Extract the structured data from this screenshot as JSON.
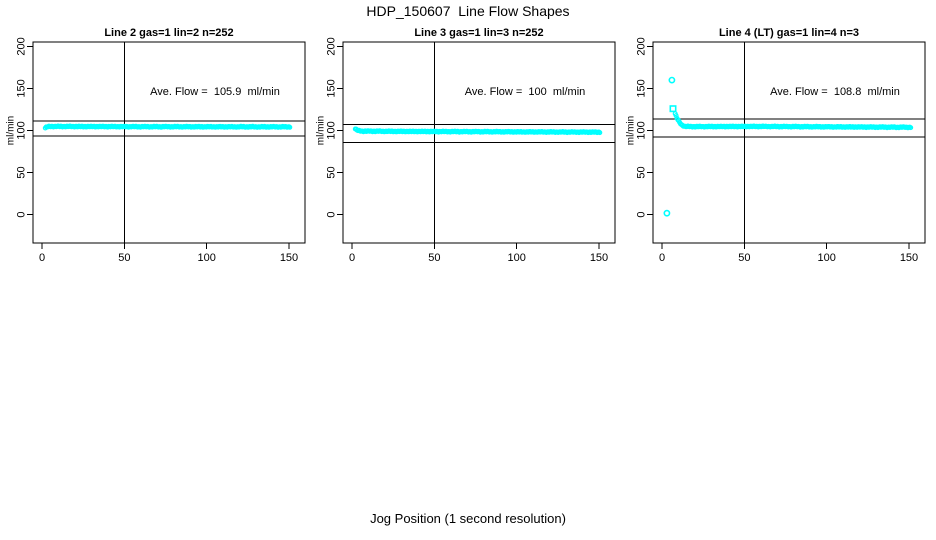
{
  "window_title": "HDP_150607  Line Flow Shapes",
  "xlabel": "Jog Position (1 second resolution)",
  "colors": {
    "points": "#00ffff",
    "axis": "#000000",
    "background": "#ffffff"
  },
  "chart_data": [
    {
      "type": "scatter",
      "title": "Line 2 gas=1 lin=2 n=252",
      "annotation": "Ave. Flow =  105.9  ml/min",
      "ave_flow": 105.9,
      "n": 252,
      "ylabel": "ml/min",
      "xticks": [
        "0",
        "50",
        "100",
        "150"
      ],
      "xtick_values": [
        0,
        50,
        100,
        150
      ],
      "yticks": [
        "0",
        "50",
        "100",
        "150",
        "200"
      ],
      "ytick_values": [
        0,
        50,
        100,
        150,
        200
      ],
      "xlim": [
        -5.5,
        159.5
      ],
      "ylim": [
        -34,
        205
      ],
      "grid": false,
      "vline_x": 50,
      "hlines": [
        111.3,
        93.5
      ],
      "band": {
        "marker": "circle",
        "keypoints": [
          [
            2,
            103.0
          ],
          [
            3,
            104.3
          ],
          [
            5,
            104.8
          ],
          [
            60,
            104.5
          ],
          [
            151,
            104.3
          ]
        ],
        "x_step": 0.55,
        "jitter": 0.55
      },
      "outliers": []
    },
    {
      "type": "scatter",
      "title": "Line 3 gas=1 lin=3 n=252",
      "annotation": "Ave. Flow =  100  ml/min",
      "ave_flow": 100,
      "n": 252,
      "ylabel": "ml/min",
      "xticks": [
        "0",
        "50",
        "100",
        "150"
      ],
      "xtick_values": [
        0,
        50,
        100,
        150
      ],
      "yticks": [
        "0",
        "50",
        "100",
        "150",
        "200"
      ],
      "ytick_values": [
        0,
        50,
        100,
        150,
        200
      ],
      "xlim": [
        -5.5,
        159.5
      ],
      "ylim": [
        -34,
        205
      ],
      "grid": false,
      "vline_x": 50,
      "hlines": [
        107.0,
        86.0
      ],
      "band": {
        "marker": "circle",
        "keypoints": [
          [
            2,
            101.8
          ],
          [
            3.5,
            100.0
          ],
          [
            6,
            99.2
          ],
          [
            30,
            98.9
          ],
          [
            151,
            98.0
          ]
        ],
        "x_step": 0.55,
        "jitter": 0.55
      },
      "outliers": []
    },
    {
      "type": "scatter",
      "title": "Line 4 (LT) gas=1 lin=4 n=3",
      "annotation": "Ave. Flow =  108.8  ml/min",
      "ave_flow": 108.8,
      "n": 3,
      "ylabel": "ml/min",
      "xticks": [
        "0",
        "50",
        "100",
        "150"
      ],
      "xtick_values": [
        0,
        50,
        100,
        150
      ],
      "yticks": [
        "0",
        "50",
        "100",
        "150",
        "200"
      ],
      "ytick_values": [
        0,
        50,
        100,
        150,
        200
      ],
      "xlim": [
        -5.5,
        159.5
      ],
      "ylim": [
        -34,
        205
      ],
      "grid": false,
      "vline_x": 50,
      "hlines": [
        113.5,
        92.5
      ],
      "band": {
        "marker": "circle",
        "keypoints": [
          [
            8,
            120.0
          ],
          [
            9,
            115.0
          ],
          [
            10.5,
            110.0
          ],
          [
            12,
            106.5
          ],
          [
            14,
            104.8
          ],
          [
            20,
            104.6
          ],
          [
            60,
            104.8
          ],
          [
            151,
            103.8
          ]
        ],
        "x_step": 0.55,
        "jitter": 0.55
      },
      "outliers": [
        {
          "x": 3,
          "y": 1.5,
          "marker": "circle"
        },
        {
          "x": 6,
          "y": 160,
          "marker": "circle"
        },
        {
          "x": 6.7,
          "y": 126,
          "marker": "square"
        }
      ]
    }
  ]
}
